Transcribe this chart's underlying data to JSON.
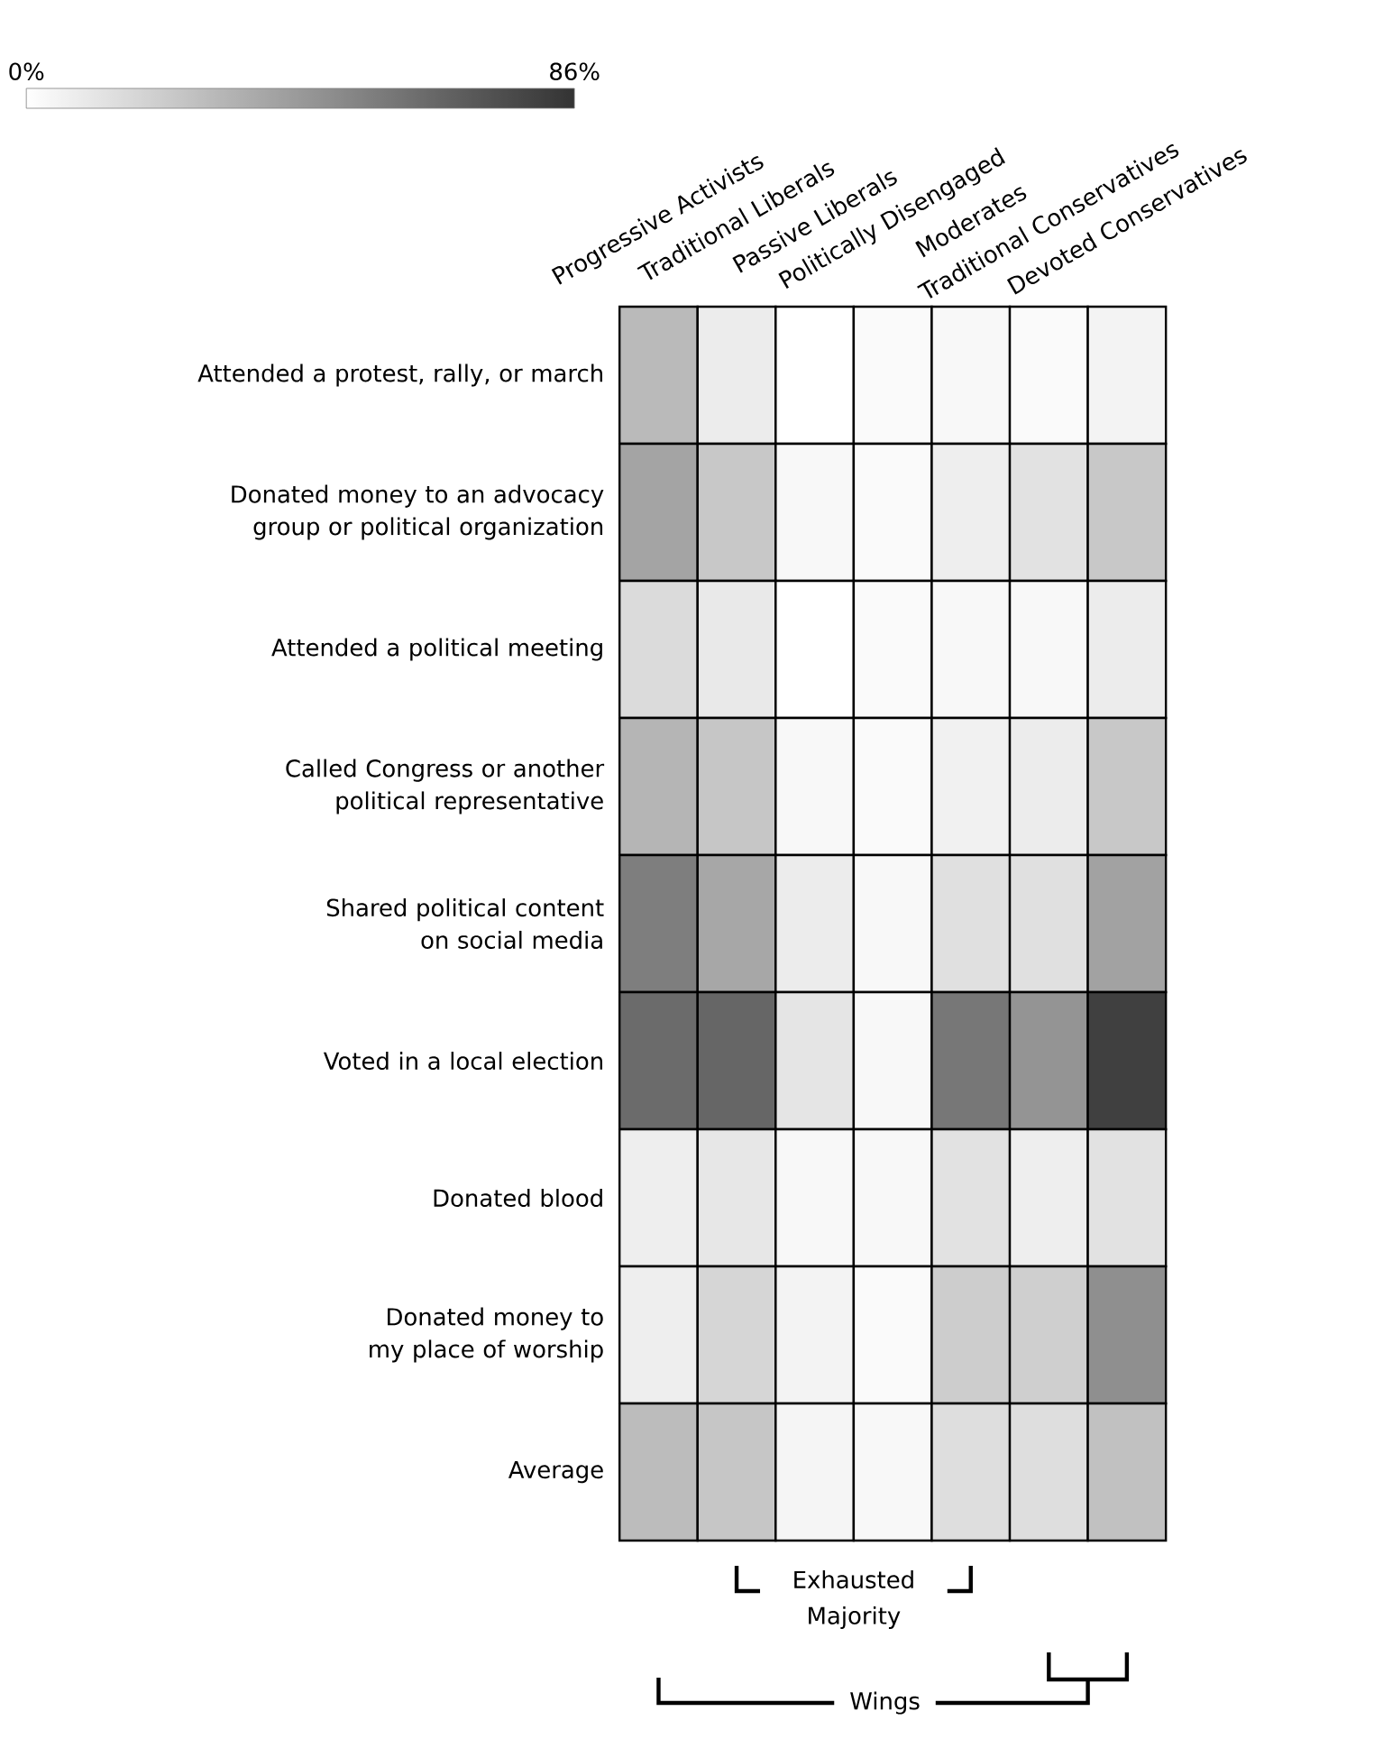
{
  "chart_data": {
    "type": "heatmap",
    "categories": [
      "Progressive Activists",
      "Traditional Liberals",
      "Passive Liberals",
      "Politically Disengaged",
      "Moderates",
      "Traditional Conservatives",
      "Devoted Conservatives"
    ],
    "y_categories": [
      "Attended a protest, rally, or march",
      "Donated money to an advocacy group or political organization",
      "Attended a political meeting",
      "Called Congress or another political representative",
      "Shared political content on social media",
      "Voted in a local election",
      "Donated blood",
      "Donated money to my place of worship",
      "Average"
    ],
    "cells": [
      [
        29,
        8,
        0,
        2,
        3,
        2,
        5
      ],
      [
        38,
        23,
        3,
        2,
        7,
        12,
        23
      ],
      [
        15,
        9,
        0,
        2,
        3,
        3,
        8
      ],
      [
        31,
        24,
        3,
        2,
        6,
        8,
        23
      ],
      [
        54,
        37,
        8,
        3,
        13,
        13,
        39
      ],
      [
        62,
        64,
        11,
        3,
        57,
        45,
        80
      ],
      [
        7,
        10,
        3,
        3,
        12,
        7,
        12
      ],
      [
        7,
        17,
        5,
        2,
        21,
        20,
        47
      ],
      [
        28,
        24,
        4,
        3,
        14,
        14,
        26
      ]
    ],
    "clim": [
      0,
      86
    ],
    "cticks": [
      {
        "value": 0,
        "label": "0%"
      },
      {
        "value": 86,
        "label": "86%"
      }
    ],
    "annotations": [
      "Exhausted Majority",
      "Wings"
    ]
  }
}
